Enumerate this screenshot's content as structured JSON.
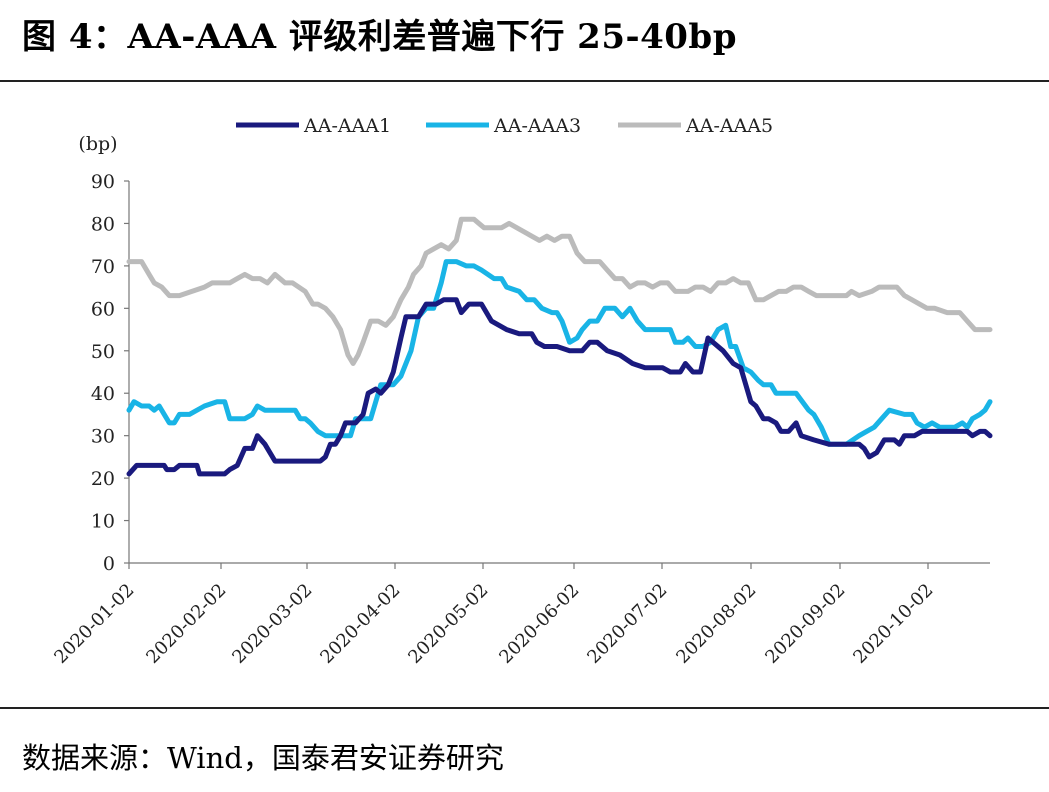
{
  "figure": {
    "title": "图 4：AA-AAA 评级利差普遍下行 25-40bp",
    "source": "数据来源：Wind，国泰君安证券研究"
  },
  "chart_data": {
    "type": "line",
    "title": "",
    "ylabel": "(bp)",
    "xlabel": "",
    "ylim": [
      0,
      90
    ],
    "yticks": [
      0,
      10,
      20,
      30,
      40,
      50,
      60,
      70,
      80,
      90
    ],
    "x_tick_labels": [
      "2020-01-02",
      "2020-02-02",
      "2020-03-02",
      "2020-04-02",
      "2020-05-02",
      "2020-06-02",
      "2020-07-02",
      "2020-08-02",
      "2020-09-02",
      "2020-10-02"
    ],
    "x_range_days": [
      0,
      302
    ],
    "grid": false,
    "legend_position": "top-center",
    "series": [
      {
        "name": "AA-AAA1",
        "color": "#1a1a7e",
        "points": [
          [
            0,
            21
          ],
          [
            3,
            23
          ],
          [
            14,
            23
          ],
          [
            15,
            22
          ],
          [
            18,
            22
          ],
          [
            20,
            23
          ],
          [
            27,
            23
          ],
          [
            28,
            21
          ],
          [
            38,
            21
          ],
          [
            40,
            22
          ],
          [
            43,
            23
          ],
          [
            46,
            27
          ],
          [
            49,
            27
          ],
          [
            51,
            30
          ],
          [
            54,
            28
          ],
          [
            58,
            24
          ],
          [
            70,
            24
          ],
          [
            76,
            24
          ],
          [
            78,
            25
          ],
          [
            80,
            28
          ],
          [
            82,
            28
          ],
          [
            84,
            30
          ],
          [
            86,
            33
          ],
          [
            90,
            33
          ],
          [
            93,
            35
          ],
          [
            95,
            40
          ],
          [
            98,
            41
          ],
          [
            100,
            40
          ],
          [
            103,
            42
          ],
          [
            105,
            45
          ],
          [
            108,
            53
          ],
          [
            110,
            58
          ],
          [
            115,
            58
          ],
          [
            118,
            61
          ],
          [
            122,
            61
          ],
          [
            125,
            62
          ],
          [
            130,
            62
          ],
          [
            132,
            59
          ],
          [
            135,
            61
          ],
          [
            140,
            61
          ],
          [
            144,
            57
          ],
          [
            150,
            55
          ],
          [
            155,
            54
          ],
          [
            160,
            54
          ],
          [
            162,
            52
          ],
          [
            165,
            51
          ],
          [
            170,
            51
          ],
          [
            175,
            50
          ],
          [
            180,
            50
          ],
          [
            183,
            52
          ],
          [
            186,
            52
          ],
          [
            190,
            50
          ],
          [
            195,
            49
          ],
          [
            200,
            47
          ],
          [
            205,
            46
          ],
          [
            212,
            46
          ],
          [
            215,
            45
          ],
          [
            219,
            45
          ],
          [
            221,
            47
          ],
          [
            224,
            45
          ],
          [
            227,
            45
          ],
          [
            230,
            53
          ],
          [
            236,
            50
          ],
          [
            240,
            47
          ],
          [
            243,
            46
          ],
          [
            247,
            38
          ],
          [
            249,
            37
          ],
          [
            252,
            34
          ],
          [
            254,
            34
          ],
          [
            257,
            33
          ],
          [
            259,
            31
          ],
          [
            262,
            31
          ],
          [
            265,
            33
          ],
          [
            267,
            30
          ],
          [
            272,
            29
          ],
          [
            278,
            28
          ],
          [
            285,
            28
          ],
          [
            290,
            28
          ],
          [
            292,
            27
          ],
          [
            294,
            25
          ],
          [
            297,
            26
          ],
          [
            300,
            29
          ],
          [
            304,
            29
          ],
          [
            306,
            28
          ],
          [
            308,
            30
          ],
          [
            312,
            30
          ],
          [
            315,
            31
          ],
          [
            320,
            31
          ],
          [
            325,
            31
          ],
          [
            330,
            31
          ],
          [
            333,
            31
          ],
          [
            335,
            30
          ],
          [
            338,
            31
          ],
          [
            340,
            31
          ],
          [
            342,
            30
          ]
        ]
      },
      {
        "name": "AA-AAA3",
        "color": "#19b4e6",
        "points": [
          [
            0,
            36
          ],
          [
            2,
            38
          ],
          [
            5,
            37
          ],
          [
            8,
            37
          ],
          [
            10,
            36
          ],
          [
            12,
            37
          ],
          [
            14,
            35
          ],
          [
            16,
            33
          ],
          [
            18,
            33
          ],
          [
            20,
            35
          ],
          [
            24,
            35
          ],
          [
            30,
            37
          ],
          [
            35,
            38
          ],
          [
            38,
            38
          ],
          [
            40,
            34
          ],
          [
            46,
            34
          ],
          [
            49,
            35
          ],
          [
            51,
            37
          ],
          [
            54,
            36
          ],
          [
            58,
            36
          ],
          [
            66,
            36
          ],
          [
            68,
            34
          ],
          [
            70,
            34
          ],
          [
            72,
            33
          ],
          [
            75,
            31
          ],
          [
            78,
            30
          ],
          [
            88,
            30
          ],
          [
            90,
            34
          ],
          [
            96,
            34
          ],
          [
            100,
            42
          ],
          [
            105,
            42
          ],
          [
            108,
            44
          ],
          [
            112,
            50
          ],
          [
            115,
            58
          ],
          [
            118,
            60
          ],
          [
            121,
            60
          ],
          [
            124,
            66
          ],
          [
            126,
            71
          ],
          [
            130,
            71
          ],
          [
            134,
            70
          ],
          [
            137,
            70
          ],
          [
            140,
            69
          ],
          [
            145,
            67
          ],
          [
            148,
            67
          ],
          [
            150,
            65
          ],
          [
            155,
            64
          ],
          [
            158,
            62
          ],
          [
            161,
            62
          ],
          [
            164,
            60
          ],
          [
            168,
            59
          ],
          [
            170,
            59
          ],
          [
            172,
            57
          ],
          [
            175,
            52
          ],
          [
            178,
            53
          ],
          [
            180,
            55
          ],
          [
            183,
            57
          ],
          [
            186,
            57
          ],
          [
            189,
            60
          ],
          [
            193,
            60
          ],
          [
            196,
            58
          ],
          [
            199,
            60
          ],
          [
            202,
            57
          ],
          [
            205,
            55
          ],
          [
            210,
            55
          ],
          [
            215,
            55
          ],
          [
            217,
            52
          ],
          [
            220,
            52
          ],
          [
            222,
            53
          ],
          [
            225,
            51
          ],
          [
            228,
            51
          ],
          [
            231,
            52
          ],
          [
            234,
            55
          ],
          [
            237,
            56
          ],
          [
            239,
            51
          ],
          [
            241,
            51
          ],
          [
            244,
            46
          ],
          [
            247,
            45
          ],
          [
            250,
            43
          ],
          [
            252,
            42
          ],
          [
            255,
            42
          ],
          [
            257,
            40
          ],
          [
            265,
            40
          ],
          [
            270,
            36
          ],
          [
            272,
            35
          ],
          [
            275,
            32
          ],
          [
            278,
            28
          ],
          [
            285,
            28
          ],
          [
            290,
            30
          ],
          [
            293,
            31
          ],
          [
            296,
            32
          ],
          [
            299,
            34
          ],
          [
            302,
            36
          ],
          [
            308,
            35
          ],
          [
            311,
            35
          ],
          [
            313,
            33
          ],
          [
            316,
            32
          ],
          [
            319,
            33
          ],
          [
            322,
            32
          ],
          [
            328,
            32
          ],
          [
            331,
            33
          ],
          [
            333,
            32
          ],
          [
            335,
            34
          ],
          [
            338,
            35
          ],
          [
            340,
            36
          ],
          [
            342,
            38
          ]
        ]
      },
      {
        "name": "AA-AAA5",
        "color": "#bbbbbb",
        "points": [
          [
            0,
            71
          ],
          [
            5,
            71
          ],
          [
            8,
            68
          ],
          [
            10,
            66
          ],
          [
            13,
            65
          ],
          [
            16,
            63
          ],
          [
            20,
            63
          ],
          [
            25,
            64
          ],
          [
            30,
            65
          ],
          [
            33,
            66
          ],
          [
            38,
            66
          ],
          [
            40,
            66
          ],
          [
            43,
            67
          ],
          [
            46,
            68
          ],
          [
            49,
            67
          ],
          [
            52,
            67
          ],
          [
            55,
            66
          ],
          [
            58,
            68
          ],
          [
            62,
            66
          ],
          [
            65,
            66
          ],
          [
            70,
            64
          ],
          [
            73,
            61
          ],
          [
            75,
            61
          ],
          [
            78,
            60
          ],
          [
            81,
            58
          ],
          [
            84,
            55
          ],
          [
            87,
            49
          ],
          [
            89,
            47
          ],
          [
            91,
            49
          ],
          [
            93,
            52
          ],
          [
            96,
            57
          ],
          [
            99,
            57
          ],
          [
            102,
            56
          ],
          [
            105,
            58
          ],
          [
            108,
            62
          ],
          [
            111,
            65
          ],
          [
            113,
            68
          ],
          [
            116,
            70
          ],
          [
            118,
            73
          ],
          [
            121,
            74
          ],
          [
            124,
            75
          ],
          [
            127,
            74
          ],
          [
            130,
            76
          ],
          [
            132,
            81
          ],
          [
            137,
            81
          ],
          [
            139,
            80
          ],
          [
            141,
            79
          ],
          [
            145,
            79
          ],
          [
            148,
            79
          ],
          [
            151,
            80
          ],
          [
            154,
            79
          ],
          [
            157,
            78
          ],
          [
            160,
            77
          ],
          [
            163,
            76
          ],
          [
            166,
            77
          ],
          [
            169,
            76
          ],
          [
            172,
            77
          ],
          [
            175,
            77
          ],
          [
            178,
            73
          ],
          [
            181,
            71
          ],
          [
            184,
            71
          ],
          [
            187,
            71
          ],
          [
            190,
            69
          ],
          [
            193,
            67
          ],
          [
            196,
            67
          ],
          [
            199,
            65
          ],
          [
            202,
            66
          ],
          [
            205,
            66
          ],
          [
            208,
            65
          ],
          [
            211,
            66
          ],
          [
            214,
            66
          ],
          [
            217,
            64
          ],
          [
            220,
            64
          ],
          [
            222,
            64
          ],
          [
            225,
            65
          ],
          [
            228,
            65
          ],
          [
            231,
            64
          ],
          [
            234,
            66
          ],
          [
            237,
            66
          ],
          [
            240,
            67
          ],
          [
            243,
            66
          ],
          [
            246,
            66
          ],
          [
            249,
            62
          ],
          [
            252,
            62
          ],
          [
            255,
            63
          ],
          [
            258,
            64
          ],
          [
            261,
            64
          ],
          [
            264,
            65
          ],
          [
            267,
            65
          ],
          [
            270,
            64
          ],
          [
            273,
            63
          ],
          [
            280,
            63
          ],
          [
            285,
            63
          ],
          [
            287,
            64
          ],
          [
            290,
            63
          ],
          [
            295,
            64
          ],
          [
            298,
            65
          ],
          [
            302,
            65
          ],
          [
            305,
            65
          ],
          [
            308,
            63
          ],
          [
            311,
            62
          ],
          [
            314,
            61
          ],
          [
            317,
            60
          ],
          [
            320,
            60
          ],
          [
            325,
            59
          ],
          [
            330,
            59
          ],
          [
            333,
            57
          ],
          [
            336,
            55
          ],
          [
            340,
            55
          ],
          [
            342,
            55
          ]
        ]
      }
    ]
  }
}
